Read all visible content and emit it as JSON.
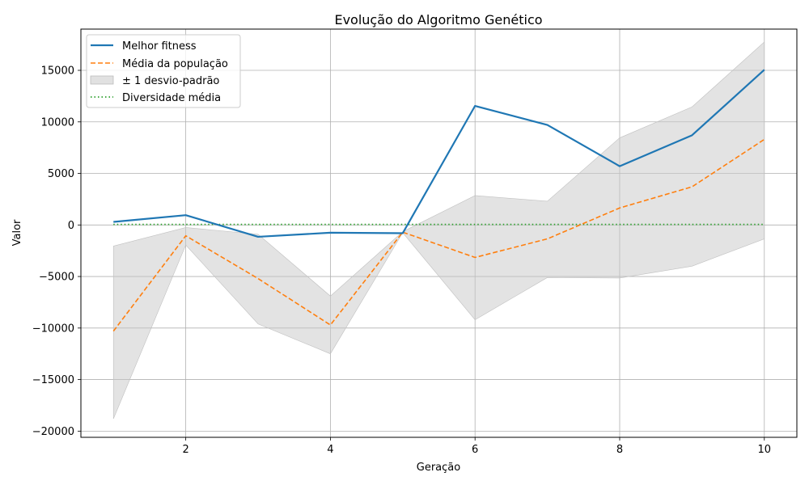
{
  "chart_data": {
    "type": "line",
    "title": "Evolução do Algoritmo Genético",
    "xlabel": "Geração",
    "ylabel": "Valor",
    "x": [
      1,
      2,
      3,
      4,
      5,
      6,
      7,
      8,
      9,
      10
    ],
    "xlim": [
      0.55,
      10.45
    ],
    "ylim": [
      -20600,
      19000
    ],
    "xticks": [
      2,
      4,
      6,
      8,
      10
    ],
    "yticks": [
      -20000,
      -15000,
      -10000,
      -5000,
      0,
      5000,
      10000,
      15000
    ],
    "grid": true,
    "legend_position": "top-left",
    "series": [
      {
        "name": "Melhor fitness",
        "style": "solid",
        "color": "#1f77b4",
        "values": [
          300,
          950,
          -1150,
          -750,
          -800,
          11550,
          9700,
          5700,
          8700,
          15050
        ]
      },
      {
        "name": "Média da população",
        "style": "dashed",
        "color": "#ff7f0e",
        "values": [
          -10300,
          -1050,
          -5200,
          -9700,
          -700,
          -3150,
          -1350,
          1650,
          3700,
          8300
        ]
      },
      {
        "name": "Diversidade média",
        "style": "dotted",
        "color": "#2ca02c",
        "values": [
          50,
          50,
          50,
          50,
          50,
          50,
          50,
          50,
          50,
          50
        ]
      }
    ],
    "band": {
      "name": "± 1 desvio-padrão",
      "color": "#c8c8c8",
      "upper": [
        -2050,
        -250,
        -900,
        -6900,
        -650,
        2850,
        2300,
        8450,
        11450,
        17750
      ],
      "lower": [
        -18800,
        -1950,
        -9600,
        -12500,
        -750,
        -9200,
        -5100,
        -5150,
        -4000,
        -1350
      ]
    }
  }
}
